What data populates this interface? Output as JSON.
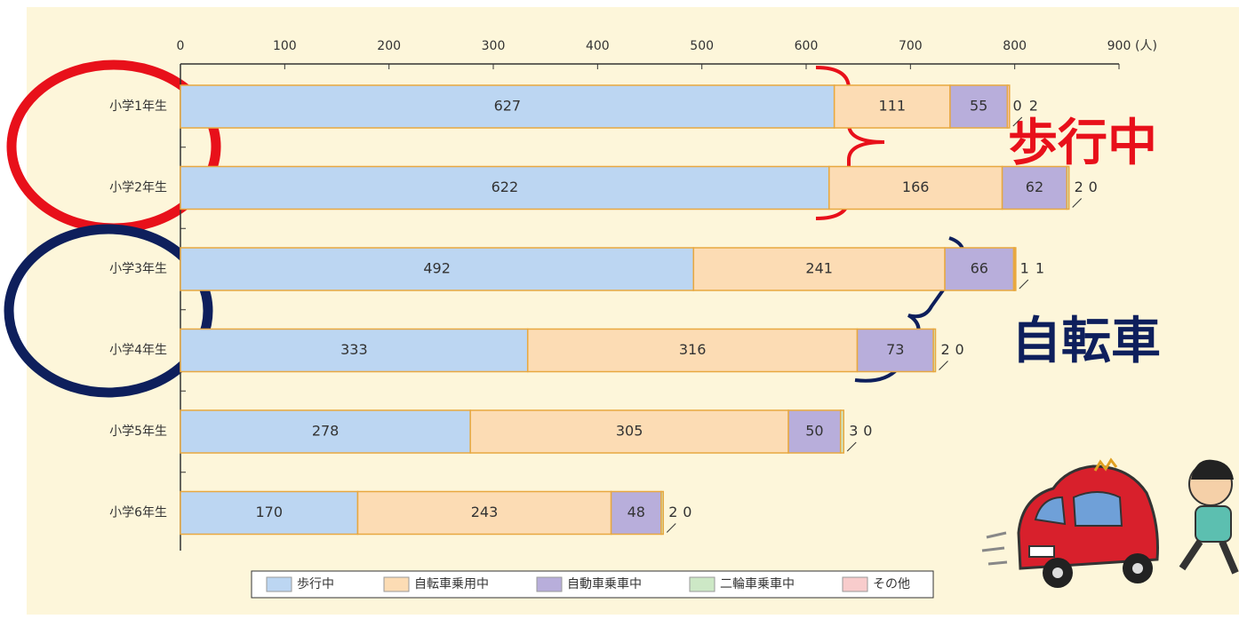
{
  "chart_data": {
    "type": "stacked-bar-horizontal",
    "categories": [
      "小学1年生",
      "小学2年生",
      "小学3年生",
      "小学4年生",
      "小学5年生",
      "小学6年生"
    ],
    "series": [
      {
        "name": "歩行中",
        "color": "#bcd6f2",
        "values": [
          627,
          622,
          492,
          333,
          278,
          170
        ]
      },
      {
        "name": "自転車乗用中",
        "color": "#fcdcb4",
        "values": [
          111,
          166,
          241,
          316,
          305,
          243
        ]
      },
      {
        "name": "自動車乗車中",
        "color": "#b8aedb",
        "values": [
          55,
          62,
          66,
          73,
          50,
          48
        ]
      },
      {
        "name": "二輪車乗車中",
        "color": "#cde8c6",
        "values": [
          0,
          2,
          1,
          2,
          3,
          2
        ]
      },
      {
        "name": "その他",
        "color": "#f8cccc",
        "values": [
          2,
          0,
          1,
          0,
          0,
          0
        ]
      }
    ],
    "xlim": [
      0,
      900
    ],
    "xticks": [
      0,
      100,
      200,
      300,
      400,
      500,
      600,
      700,
      800,
      900
    ],
    "x_unit": "(人)",
    "annotations": [
      "歩行中",
      "自転車"
    ]
  }
}
